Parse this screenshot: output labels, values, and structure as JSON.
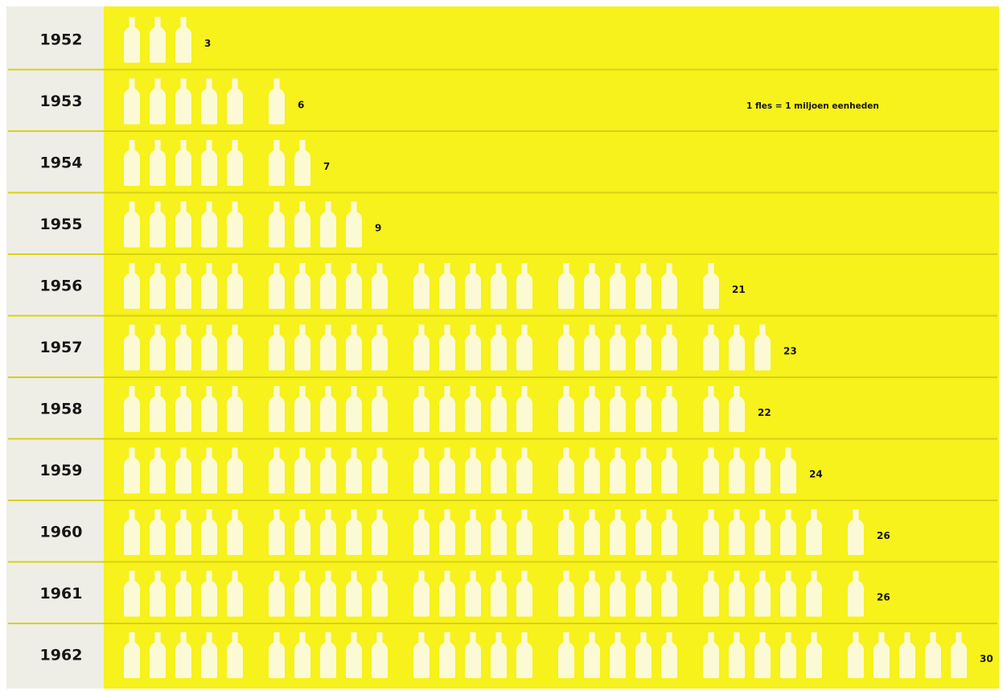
{
  "colors": {
    "panel": "#f7f11c",
    "label_column": "#eeeee6",
    "bottle": "#fbfad4",
    "row_line": "#d7d116",
    "text": "#161616"
  },
  "legend": {
    "text": "1 fles = 1 miljoen eenheden"
  },
  "chart_data": {
    "type": "bar",
    "style": "pictogram",
    "orientation": "horizontal",
    "unit_icon": "milk-bottle-icon",
    "icons_per_group": 5,
    "categories": [
      "1952",
      "1953",
      "1954",
      "1955",
      "1956",
      "1957",
      "1958",
      "1959",
      "1960",
      "1961",
      "1962"
    ],
    "values": [
      3,
      6,
      7,
      9,
      21,
      23,
      22,
      24,
      26,
      26,
      30
    ],
    "value_labels": [
      "3",
      "6",
      "7",
      "9",
      "21",
      "23",
      "22",
      "24",
      "26",
      "26",
      "30"
    ],
    "legend_placement": "top-right"
  }
}
